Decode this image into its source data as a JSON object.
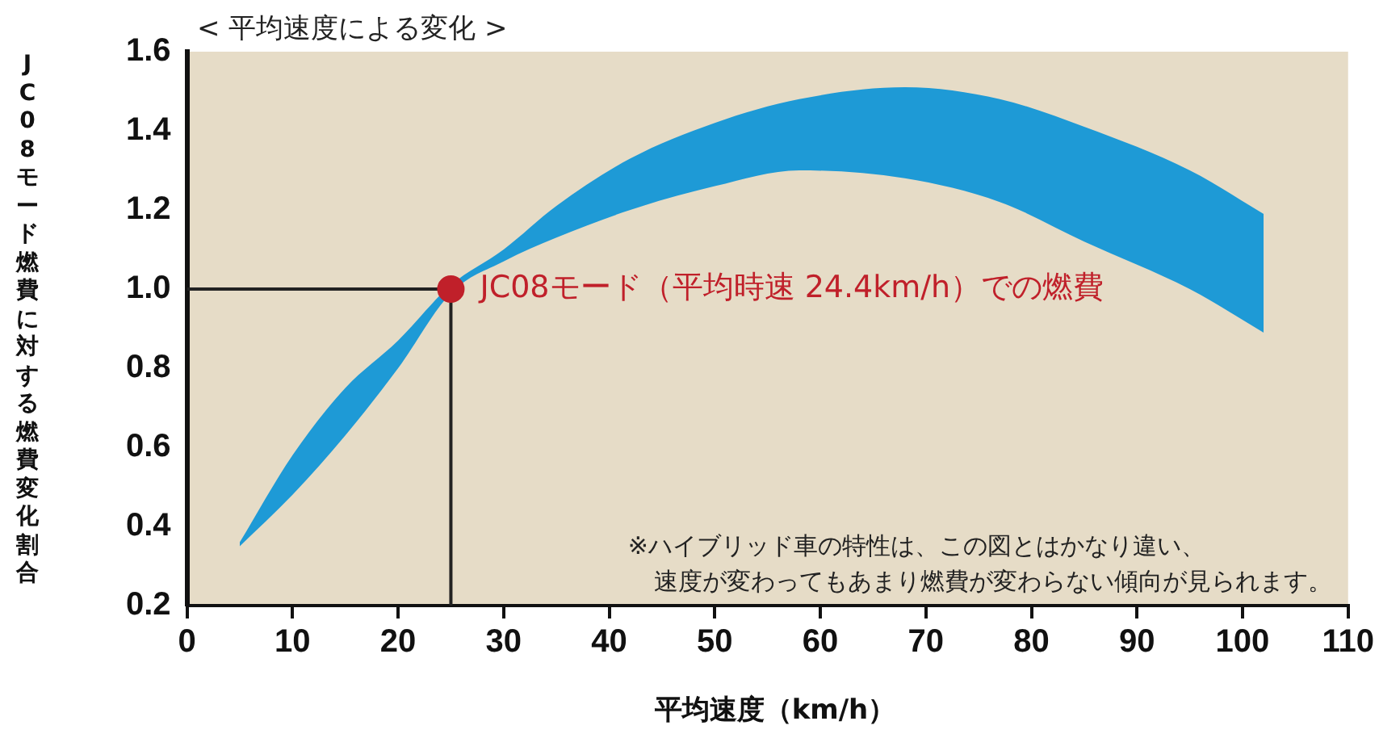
{
  "chart_data": {
    "type": "area",
    "title": "< 平均速度による変化 >",
    "xlabel": "平均速度（km/h）",
    "ylabel": "JC08モード燃費に対する燃費変化割合",
    "xlim": [
      0,
      110
    ],
    "xticks": [
      0,
      10,
      20,
      30,
      40,
      50,
      60,
      70,
      80,
      90,
      100,
      110
    ],
    "ylim": [
      0.2,
      1.6
    ],
    "yticks": [
      0.2,
      0.4,
      0.6,
      0.8,
      {
        "value": 1,
        "label": "1.0"
      },
      1.2,
      1.4,
      1.6
    ],
    "grid": false,
    "series": [
      {
        "color": "#1e9ad6",
        "x": [
          5,
          10,
          15,
          20,
          25,
          30,
          35,
          42,
          50,
          58,
          68,
          77,
          85,
          95,
          102
        ],
        "values": [
          null,
          null,
          null,
          null,
          null,
          null,
          null,
          null,
          null,
          null,
          null,
          null,
          null,
          null,
          null
        ],
        "upper": [
          0.36,
          0.58,
          0.75,
          0.87,
          1.01,
          1.1,
          1.21,
          1.33,
          1.42,
          1.48,
          1.51,
          1.48,
          1.41,
          1.3,
          1.19
        ],
        "lower": [
          0.35,
          0.48,
          0.63,
          0.8,
          0.99,
          1.07,
          1.13,
          1.2,
          1.26,
          1.3,
          1.28,
          1.22,
          1.12,
          1.0,
          0.89
        ]
      },
      {
        "type": "line",
        "color": "#222222",
        "x": [
          0,
          25,
          25
        ],
        "values": [
          1.0,
          1.0,
          0.2
        ]
      },
      {
        "type": "scatter",
        "color": "#c0202a",
        "x": [
          25
        ],
        "values": [
          1.0
        ]
      }
    ],
    "annotations": [
      {
        "text": "JC08モード（平均時速 24.4km/h）での燃費",
        "x": 25,
        "y": 1.0
      },
      "※ハイブリッド車の特性は、この図とはかなり違い、",
      "速度が変わってもあまり燃費が変わらない傾向が見られます。"
    ]
  }
}
